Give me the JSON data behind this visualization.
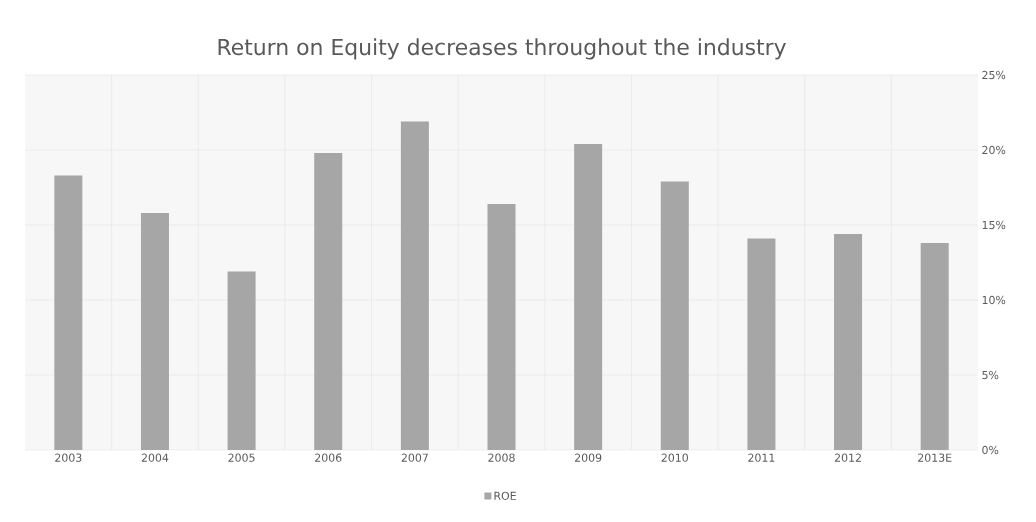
{
  "chart_data": {
    "type": "bar",
    "title": "Return on Equity decreases throughout the industry",
    "categories": [
      "2003",
      "2004",
      "2005",
      "2006",
      "2007",
      "2008",
      "2009",
      "2010",
      "2011",
      "2012",
      "2013E"
    ],
    "series": [
      {
        "name": "ROE",
        "color": "#a6a6a6",
        "values": [
          18.3,
          15.8,
          11.9,
          19.8,
          21.9,
          16.4,
          20.4,
          17.9,
          14.1,
          14.4,
          13.8
        ]
      }
    ],
    "ylim": [
      0,
      25
    ],
    "yticks": [
      {
        "value": 0,
        "label": "0%"
      },
      {
        "value": 5,
        "label": "5%"
      },
      {
        "value": 10,
        "label": "10%"
      },
      {
        "value": 15,
        "label": "15%"
      },
      {
        "value": 20,
        "label": "20%"
      },
      {
        "value": 25,
        "label": "25%"
      }
    ],
    "grid": true,
    "legend": "bottom"
  }
}
